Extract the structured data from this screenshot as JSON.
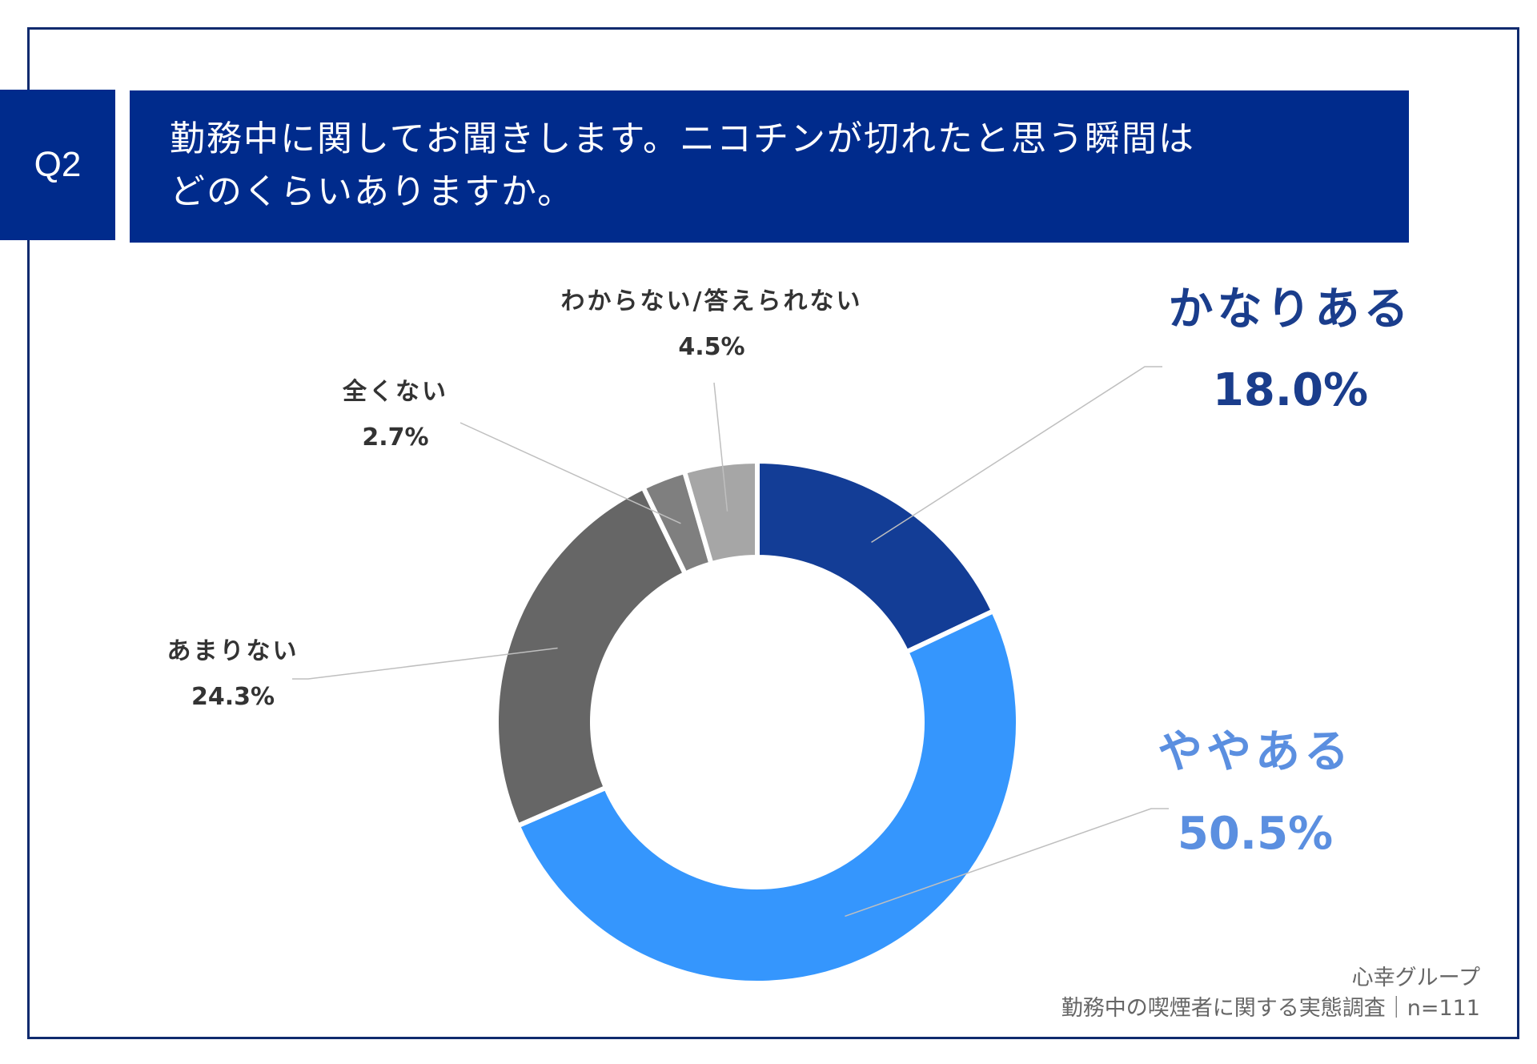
{
  "header": {
    "question_no": "Q2",
    "title_line1": "勤務中に関してお聞きします。ニコチンが切れたと思う瞬間は",
    "title_line2": "どのくらいありますか。"
  },
  "chart_data": {
    "type": "pie",
    "donut": true,
    "categories": [
      "かなりある",
      "ややある",
      "あまりない",
      "全くない",
      "わからない/答えられない"
    ],
    "values": [
      18.0,
      50.5,
      24.3,
      2.7,
      4.5
    ],
    "value_labels": [
      "18.0%",
      "50.5%",
      "24.3%",
      "2.7%",
      "4.5%"
    ],
    "colors": [
      "#133d96",
      "#3596fd",
      "#666666",
      "#7f7f7f",
      "#a6a6a6"
    ],
    "label_colors": [
      "#1a3d8c",
      "#5b8fe0",
      "#333333",
      "#333333",
      "#333333"
    ]
  },
  "footer": {
    "source": "心幸グループ",
    "survey": "勤務中の喫煙者に関する実態調査｜n=111"
  }
}
